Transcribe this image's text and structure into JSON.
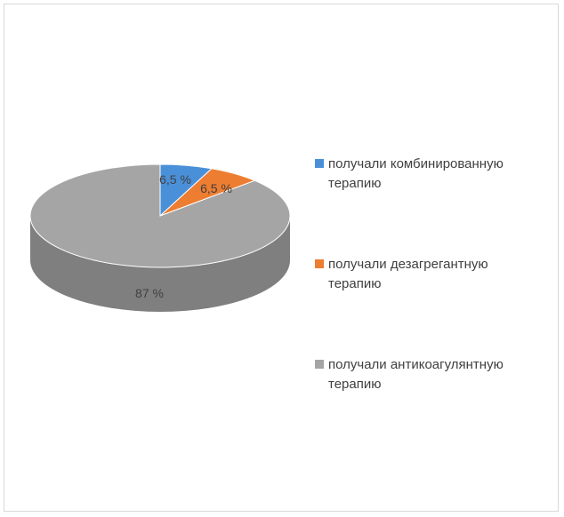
{
  "chart_data": {
    "type": "pie",
    "categories": [
      "получали комбинированную терапию",
      "получали дезагрегантную терапию",
      "получали антикоагулянтную терапию"
    ],
    "values": [
      6.5,
      6.5,
      87
    ],
    "data_labels": [
      "6,5 %",
      "6,5 %",
      "87 %"
    ],
    "colors": [
      "#4a90d9",
      "#ed7d31",
      "#a5a5a5"
    ],
    "side_colors": [
      "#2f6fae",
      "#c15e1e",
      "#7f7f7f"
    ],
    "legend_position": "right",
    "three_d": true
  }
}
